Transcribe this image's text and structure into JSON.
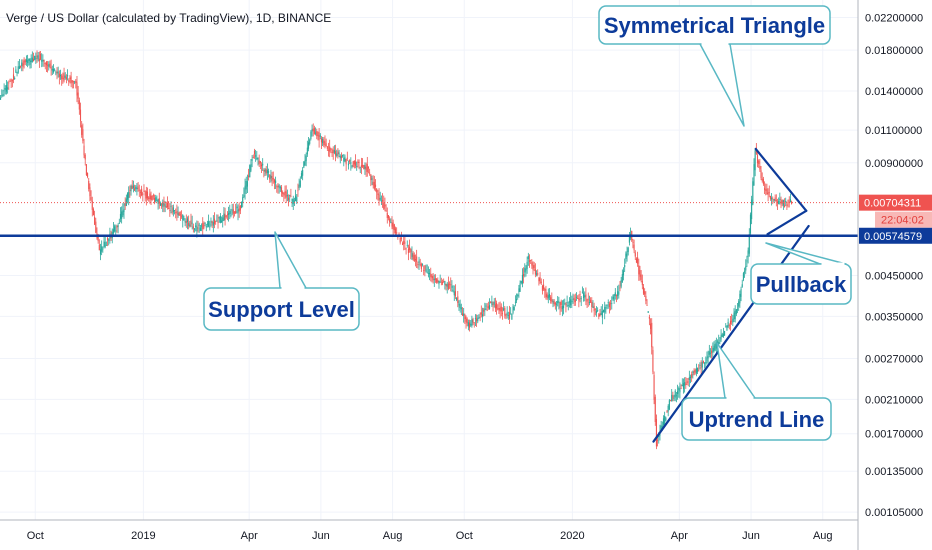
{
  "title": "Verge / US Dollar (calculated by TradingView), 1D, BINANCE",
  "colors": {
    "up": "#26a69a",
    "down": "#ef5350",
    "level_line": "#0d3b9a",
    "trend_line": "#0d3b9a",
    "callout_border": "#59b8c4",
    "callout_text": "#0d3b9a",
    "price_tag": "#ef5350",
    "level_tag": "#0d3b9a"
  },
  "chart_data": {
    "type": "candlestick",
    "title": "Verge / US Dollar (calculated by TradingView), 1D, BINANCE",
    "x_axis": {
      "tick_labels": [
        "Oct",
        "2019",
        "Apr",
        "Jun",
        "Aug",
        "Oct",
        "2020",
        "Apr",
        "Jun",
        "Aug"
      ],
      "tick_dates": [
        "2018-10-01",
        "2019-01-01",
        "2019-04-01",
        "2019-06-01",
        "2019-08-01",
        "2019-10-01",
        "2020-01-01",
        "2020-04-01",
        "2020-06-01",
        "2020-08-01"
      ],
      "range": [
        "2018-09-01",
        "2020-08-31"
      ]
    },
    "y_axis": {
      "scale": "log",
      "tick_labels": [
        "0.02200000",
        "0.01800000",
        "0.01400000",
        "0.01100000",
        "0.00900000",
        "0.00450000",
        "0.00350000",
        "0.00270000",
        "0.00210000",
        "0.00170000",
        "0.00135000",
        "0.00105000"
      ],
      "tick_values": [
        0.022,
        0.018,
        0.014,
        0.011,
        0.009,
        0.0045,
        0.0035,
        0.0027,
        0.0021,
        0.0017,
        0.00135,
        0.00105
      ],
      "range": [
        0.001,
        0.0245
      ]
    },
    "price_series": [
      {
        "date": "2018-09-01",
        "price": 0.0135
      },
      {
        "date": "2018-09-20",
        "price": 0.0165
      },
      {
        "date": "2018-10-05",
        "price": 0.0172
      },
      {
        "date": "2018-10-20",
        "price": 0.0155
      },
      {
        "date": "2018-11-05",
        "price": 0.0148
      },
      {
        "date": "2018-11-14",
        "price": 0.0085
      },
      {
        "date": "2018-11-25",
        "price": 0.0052
      },
      {
        "date": "2018-12-10",
        "price": 0.0061
      },
      {
        "date": "2018-12-22",
        "price": 0.0078
      },
      {
        "date": "2019-01-10",
        "price": 0.0072
      },
      {
        "date": "2019-01-25",
        "price": 0.0068
      },
      {
        "date": "2019-02-15",
        "price": 0.006
      },
      {
        "date": "2019-03-05",
        "price": 0.0063
      },
      {
        "date": "2019-03-25",
        "price": 0.0068
      },
      {
        "date": "2019-04-05",
        "price": 0.0095
      },
      {
        "date": "2019-04-20",
        "price": 0.0082
      },
      {
        "date": "2019-05-10",
        "price": 0.007
      },
      {
        "date": "2019-05-25",
        "price": 0.0112
      },
      {
        "date": "2019-06-05",
        "price": 0.01
      },
      {
        "date": "2019-06-25",
        "price": 0.009
      },
      {
        "date": "2019-07-10",
        "price": 0.0088
      },
      {
        "date": "2019-07-20",
        "price": 0.0074
      },
      {
        "date": "2019-08-05",
        "price": 0.0058
      },
      {
        "date": "2019-08-20",
        "price": 0.005
      },
      {
        "date": "2019-09-05",
        "price": 0.0044
      },
      {
        "date": "2019-09-20",
        "price": 0.0042
      },
      {
        "date": "2019-10-05",
        "price": 0.0033
      },
      {
        "date": "2019-10-25",
        "price": 0.0038
      },
      {
        "date": "2019-11-10",
        "price": 0.0035
      },
      {
        "date": "2019-11-25",
        "price": 0.005
      },
      {
        "date": "2019-12-10",
        "price": 0.004
      },
      {
        "date": "2019-12-25",
        "price": 0.0037
      },
      {
        "date": "2020-01-10",
        "price": 0.004
      },
      {
        "date": "2020-01-25",
        "price": 0.0035
      },
      {
        "date": "2020-02-10",
        "price": 0.0041
      },
      {
        "date": "2020-02-20",
        "price": 0.0058
      },
      {
        "date": "2020-03-01",
        "price": 0.0042
      },
      {
        "date": "2020-03-08",
        "price": 0.0033
      },
      {
        "date": "2020-03-13",
        "price": 0.0016
      },
      {
        "date": "2020-03-25",
        "price": 0.0021
      },
      {
        "date": "2020-04-10",
        "price": 0.0024
      },
      {
        "date": "2020-04-25",
        "price": 0.0027
      },
      {
        "date": "2020-05-10",
        "price": 0.0032
      },
      {
        "date": "2020-05-20",
        "price": 0.0036
      },
      {
        "date": "2020-05-30",
        "price": 0.0052
      },
      {
        "date": "2020-06-05",
        "price": 0.0097
      },
      {
        "date": "2020-06-12",
        "price": 0.0078
      },
      {
        "date": "2020-06-20",
        "price": 0.0072
      },
      {
        "date": "2020-06-30",
        "price": 0.007
      },
      {
        "date": "2020-07-05",
        "price": 0.00704
      }
    ],
    "horizontal_levels": [
      {
        "value": 0.00704311,
        "style": "dotted",
        "color": "#ef5350"
      },
      {
        "value": 0.00574579,
        "style": "solid",
        "color": "#0d3b9a"
      }
    ],
    "price_tags": [
      {
        "value": 0.00704311,
        "label": "0.00704311",
        "color": "#ef5350"
      },
      {
        "value": 0.00574579,
        "label": "0.00574579",
        "color": "#0d3b9a"
      }
    ],
    "countdown": "22:04:02",
    "trend_lines": [
      {
        "name": "uptrend",
        "from": {
          "date": "2020-03-10",
          "price": 0.00162
        },
        "to": {
          "date": "2020-07-20",
          "price": 0.0061
        }
      },
      {
        "name": "triangle-upper",
        "from": {
          "date": "2020-06-05",
          "price": 0.0098
        },
        "to": {
          "date": "2020-07-18",
          "price": 0.0067
        }
      },
      {
        "name": "triangle-lower",
        "from": {
          "date": "2020-06-15",
          "price": 0.0058
        },
        "to": {
          "date": "2020-07-18",
          "price": 0.0067
        }
      }
    ],
    "annotations": [
      {
        "text": "Symmetrical Triangle"
      },
      {
        "text": "Support Level"
      },
      {
        "text": "Pullback"
      },
      {
        "text": "Uptrend Line"
      }
    ]
  }
}
